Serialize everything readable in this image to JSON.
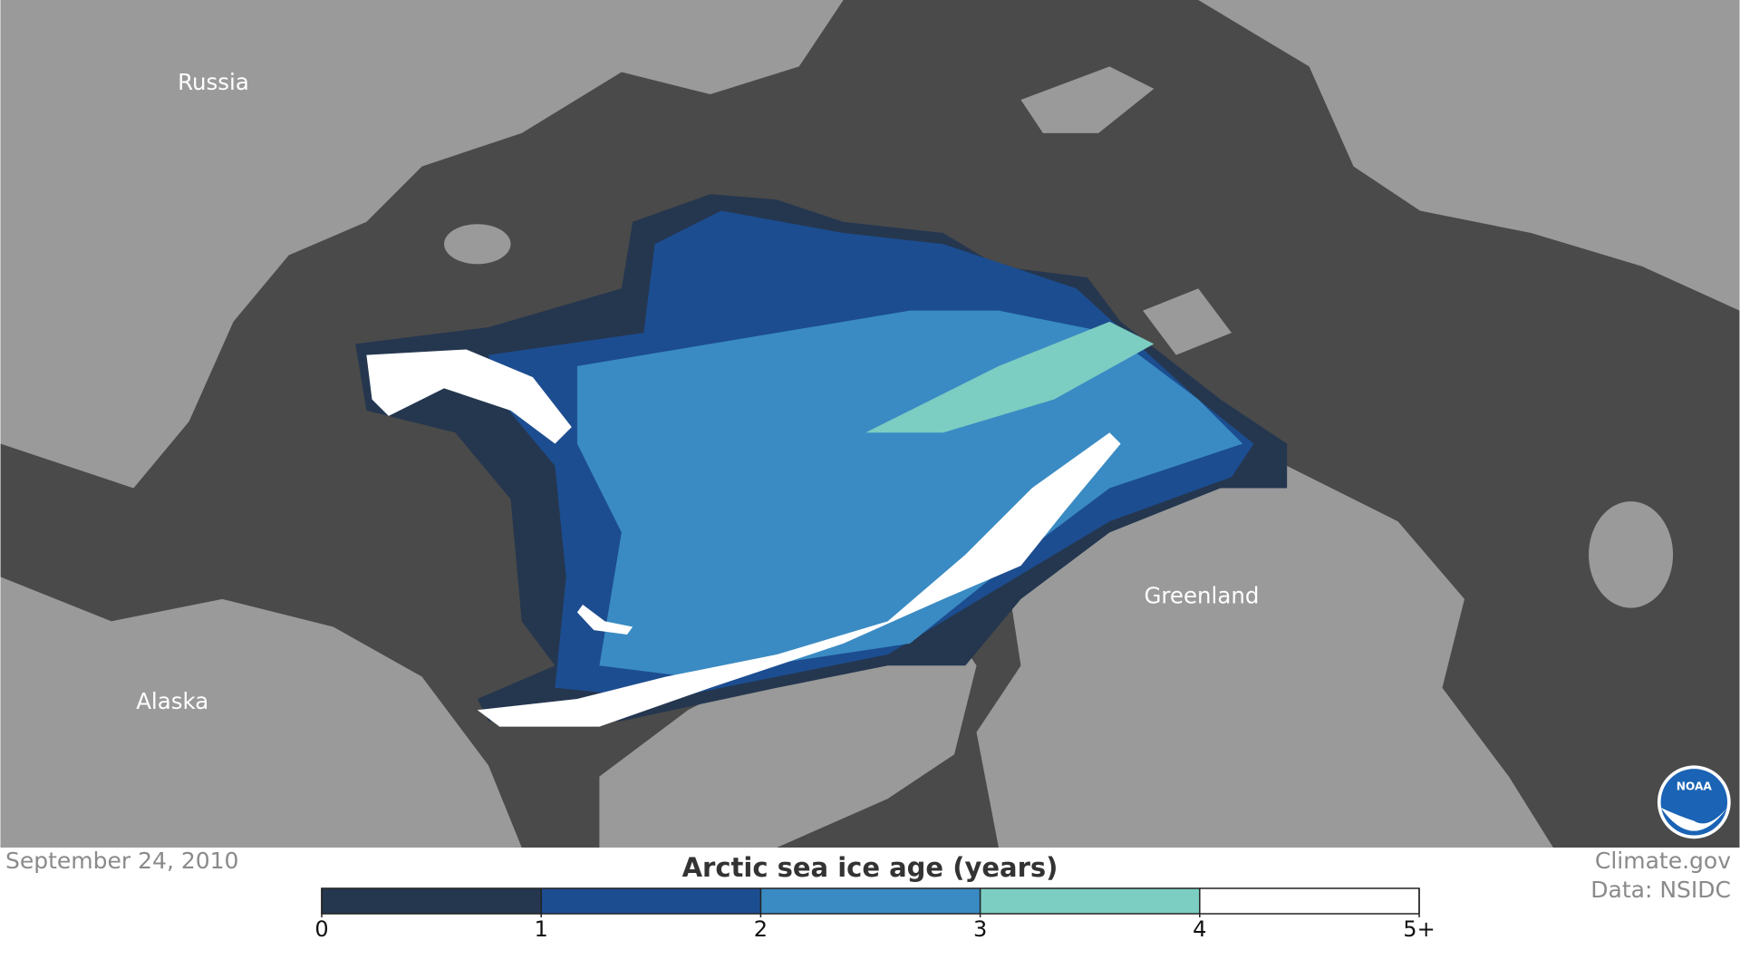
{
  "map": {
    "labels": [
      "Russia",
      "Alaska",
      "Greenland"
    ]
  },
  "date": "September 24, 2010",
  "legend": {
    "title": "Arctic sea ice age (years)",
    "ticks": [
      0,
      1,
      2,
      3,
      4,
      {
        "value": 5,
        "label": "5+"
      }
    ],
    "colors": [
      "#25374f",
      "#1c4d90",
      "#3a8bc3",
      "#7ccdc2",
      "#ffffff"
    ]
  },
  "credits": [
    "Climate.gov",
    "Data: NSIDC"
  ],
  "logo": "NOAA"
}
